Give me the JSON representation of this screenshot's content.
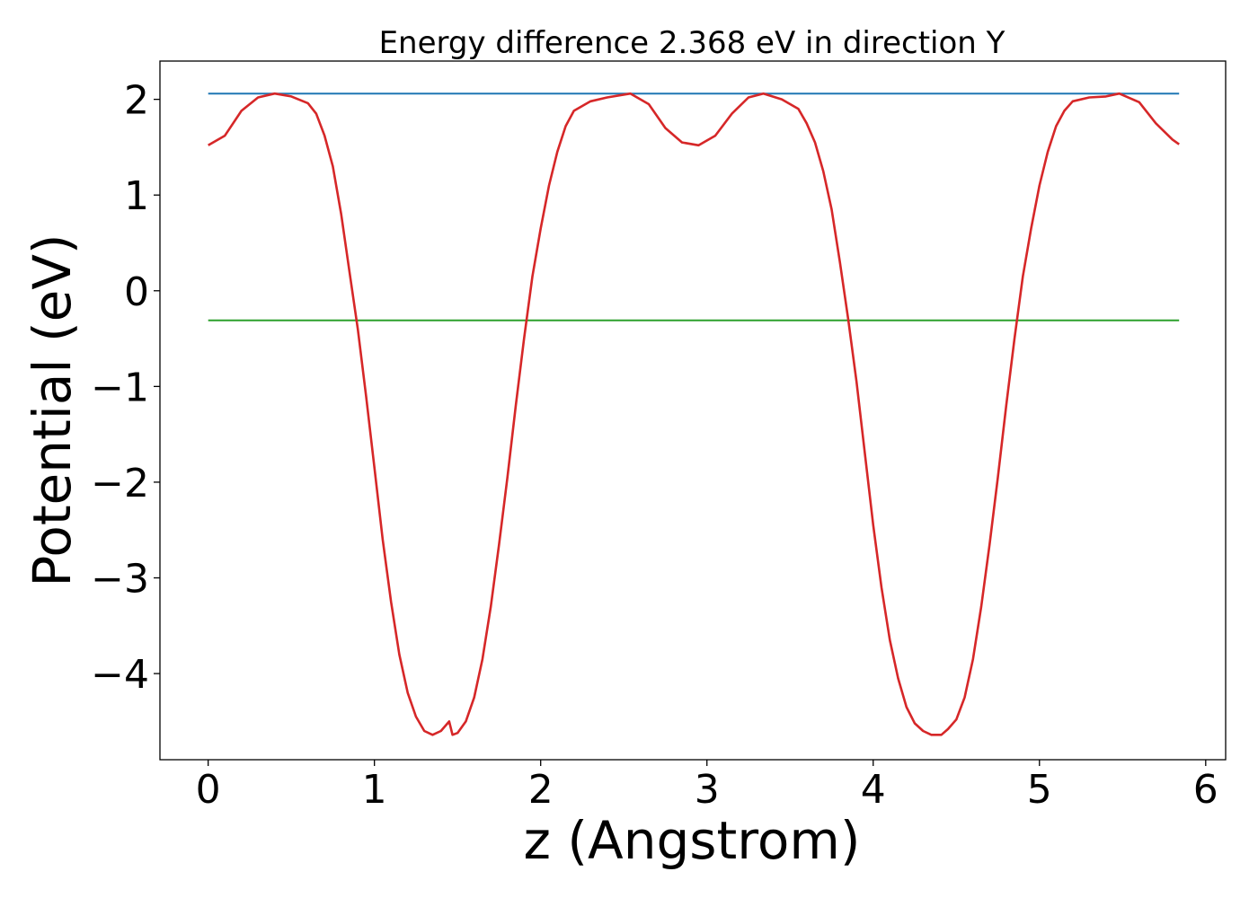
{
  "chart_data": {
    "type": "line",
    "title": "Energy difference 2.368 eV in direction Y",
    "xlabel": "z (Angstrom)",
    "ylabel": "Potential (eV)",
    "xlim": [
      -0.29,
      6.12
    ],
    "ylim": [
      -4.9,
      2.4
    ],
    "xticks": [
      0,
      1,
      2,
      3,
      4,
      5,
      6
    ],
    "yticks": [
      -4,
      -3,
      -2,
      -1,
      0,
      1,
      2
    ],
    "xtick_labels": [
      "0",
      "1",
      "2",
      "3",
      "4",
      "5",
      "6"
    ],
    "ytick_labels": [
      "−4",
      "−3",
      "−2",
      "−1",
      "0",
      "1",
      "2"
    ],
    "grid": false,
    "series": [
      {
        "color": "#d62728",
        "x": [
          0.0,
          0.1,
          0.2,
          0.3,
          0.4,
          0.5,
          0.6,
          0.65,
          0.7,
          0.75,
          0.8,
          0.85,
          0.9,
          0.95,
          1.0,
          1.05,
          1.1,
          1.15,
          1.2,
          1.25,
          1.3,
          1.35,
          1.4,
          1.45,
          1.47,
          1.5,
          1.55,
          1.6,
          1.65,
          1.7,
          1.75,
          1.8,
          1.85,
          1.9,
          1.95,
          2.0,
          2.05,
          2.1,
          2.15,
          2.2,
          2.3,
          2.4,
          2.54,
          2.65,
          2.75,
          2.85,
          2.95,
          3.05,
          3.15,
          3.25,
          3.34,
          3.45,
          3.55,
          3.6,
          3.65,
          3.7,
          3.75,
          3.8,
          3.85,
          3.9,
          3.95,
          4.0,
          4.05,
          4.1,
          4.15,
          4.2,
          4.25,
          4.3,
          4.35,
          4.41,
          4.45,
          4.5,
          4.55,
          4.6,
          4.65,
          4.7,
          4.75,
          4.8,
          4.85,
          4.9,
          4.95,
          5.0,
          5.05,
          5.1,
          5.15,
          5.2,
          5.3,
          5.4,
          5.48,
          5.6,
          5.7,
          5.8,
          5.84
        ],
        "y": [
          1.52,
          1.62,
          1.88,
          2.02,
          2.06,
          2.03,
          1.96,
          1.85,
          1.62,
          1.3,
          0.8,
          0.2,
          -0.4,
          -1.1,
          -1.85,
          -2.6,
          -3.25,
          -3.8,
          -4.2,
          -4.45,
          -4.6,
          -4.64,
          -4.6,
          -4.5,
          -4.64,
          -4.62,
          -4.5,
          -4.25,
          -3.85,
          -3.3,
          -2.65,
          -1.95,
          -1.2,
          -0.5,
          0.15,
          0.65,
          1.1,
          1.45,
          1.72,
          1.88,
          1.98,
          2.02,
          2.06,
          1.95,
          1.7,
          1.55,
          1.52,
          1.62,
          1.85,
          2.02,
          2.06,
          2.0,
          1.9,
          1.75,
          1.55,
          1.25,
          0.85,
          0.3,
          -0.3,
          -0.95,
          -1.7,
          -2.45,
          -3.1,
          -3.65,
          -4.05,
          -4.35,
          -4.52,
          -4.6,
          -4.64,
          -4.64,
          -4.58,
          -4.48,
          -4.25,
          -3.85,
          -3.3,
          -2.65,
          -1.95,
          -1.2,
          -0.5,
          0.15,
          0.65,
          1.1,
          1.45,
          1.72,
          1.88,
          1.98,
          2.02,
          2.03,
          2.06,
          1.97,
          1.75,
          1.58,
          1.53
        ]
      },
      {
        "color": "#1f77b4",
        "x": [
          0.0,
          5.84
        ],
        "y": [
          2.06,
          2.06
        ]
      },
      {
        "color": "#2ca02c",
        "x": [
          0.0,
          5.84
        ],
        "y": [
          -0.31,
          -0.31
        ]
      }
    ]
  }
}
